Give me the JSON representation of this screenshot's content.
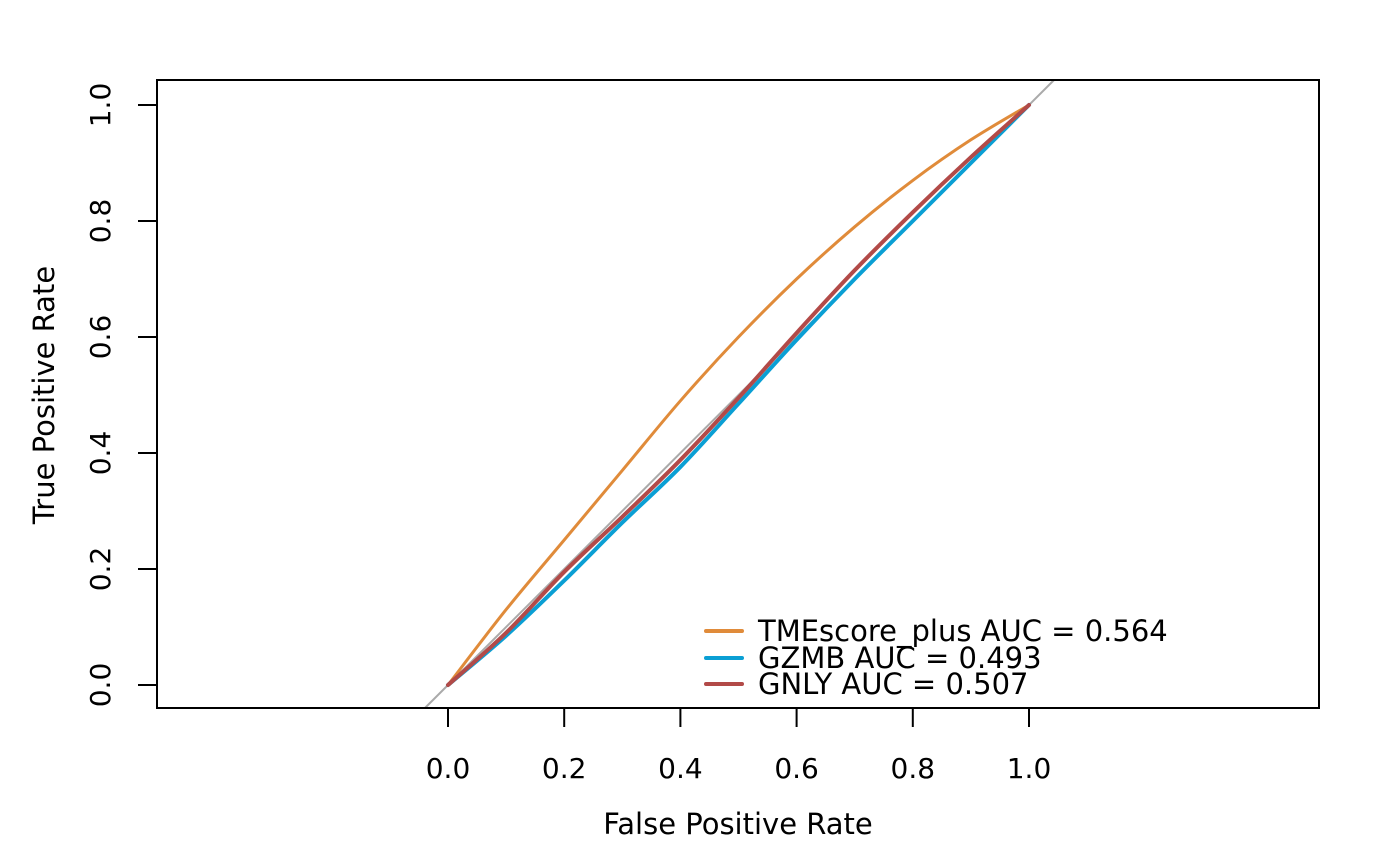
{
  "chart_data": {
    "type": "line",
    "title": "",
    "xlabel": "False Positive Rate",
    "ylabel": "True Positive Rate",
    "xlim": [
      0,
      1
    ],
    "ylim": [
      0,
      1
    ],
    "grid": false,
    "x_ticks": [
      "0.0",
      "0.2",
      "0.4",
      "0.6",
      "0.8",
      "1.0"
    ],
    "y_ticks": [
      "0.0",
      "0.2",
      "0.4",
      "0.6",
      "0.8",
      "1.0"
    ],
    "legend_position": "bottom-right",
    "reference_line": {
      "name": "diagonal",
      "color": "#aaaaaa"
    },
    "series": [
      {
        "name": "TMEscore_plus",
        "legend": "TMEscore_plus  AUC =  0.564",
        "color": "#e08b3a",
        "x": [
          0,
          0.1,
          0.2,
          0.3,
          0.4,
          0.5,
          0.6,
          0.7,
          0.8,
          0.9,
          1.0
        ],
        "y": [
          0,
          0.13,
          0.25,
          0.37,
          0.49,
          0.6,
          0.7,
          0.79,
          0.87,
          0.94,
          1.0
        ]
      },
      {
        "name": "GZMB",
        "legend": "GZMB  AUC =  0.493",
        "color": "#0a9fd4",
        "x": [
          0,
          0.1,
          0.2,
          0.3,
          0.4,
          0.5,
          0.6,
          0.7,
          0.8,
          0.9,
          1.0
        ],
        "y": [
          0,
          0.085,
          0.18,
          0.28,
          0.376,
          0.485,
          0.595,
          0.7,
          0.8,
          0.9,
          1.0
        ]
      },
      {
        "name": "GNLY",
        "legend": "GNLY  AUC =  0.507",
        "color": "#b24a48",
        "x": [
          0,
          0.1,
          0.2,
          0.3,
          0.4,
          0.5,
          0.6,
          0.7,
          0.8,
          0.9,
          1.0
        ],
        "y": [
          0,
          0.09,
          0.195,
          0.29,
          0.388,
          0.495,
          0.607,
          0.715,
          0.815,
          0.91,
          1.0
        ]
      }
    ]
  }
}
